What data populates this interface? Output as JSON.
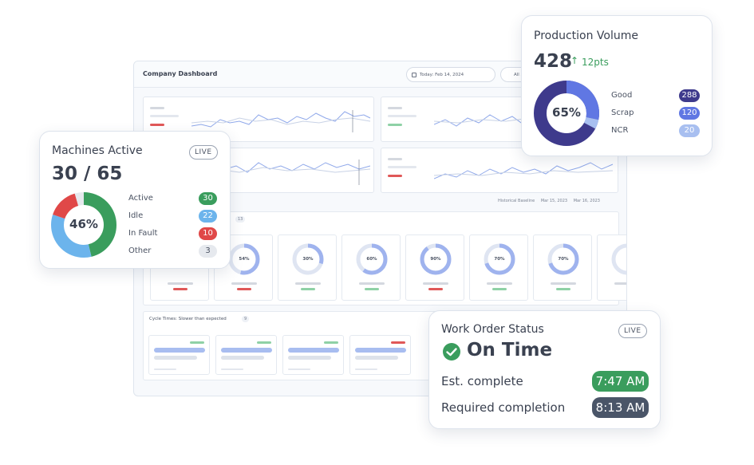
{
  "dashboard": {
    "title": "Company Dashboard",
    "date_label": "Today:  Feb 14, 2024",
    "filter_label": "All s",
    "legend": [
      "Historical Baseline",
      "Mar 15, 2023",
      "Mar 16, 2023"
    ],
    "gauges_count": "13",
    "gauge_values": [
      "54%",
      "30%",
      "60%",
      "90%",
      "70%",
      "70%"
    ],
    "gauge_fractions": [
      0.54,
      0.3,
      0.6,
      0.9,
      0.7,
      0.7
    ],
    "cycle_title": "Cycle Times: Slower than expected",
    "cycle_count": "9"
  },
  "machines": {
    "title": "Machines Active",
    "live": "LIVE",
    "value": "30 / 65",
    "percent": "46%",
    "items": [
      {
        "label": "Active",
        "value": "30",
        "color": "#3a9d5d"
      },
      {
        "label": "Idle",
        "value": "22",
        "color": "#6cb4ec"
      },
      {
        "label": "In Fault",
        "value": "10",
        "color": "#e04848"
      },
      {
        "label": "Other",
        "value": "3",
        "color": "#e6e9ee"
      }
    ]
  },
  "production": {
    "title": "Production Volume",
    "value": "428",
    "change": "12pts",
    "percent": "65%",
    "items": [
      {
        "label": "Good",
        "value": "288",
        "color": "#3e3a8c"
      },
      {
        "label": "Scrap",
        "value": "120",
        "color": "#6077e3"
      },
      {
        "label": "NCR",
        "value": "20",
        "color": "#a8bff0"
      }
    ]
  },
  "work_order": {
    "title": "Work Order Status",
    "live": "LIVE",
    "status": "On Time",
    "est_label": "Est. complete",
    "est_value": "7:47 AM",
    "req_label": "Required completion",
    "req_value": "8:13 AM",
    "colors": {
      "ok": "#3a9d5d",
      "dark": "#4a5568"
    }
  }
}
